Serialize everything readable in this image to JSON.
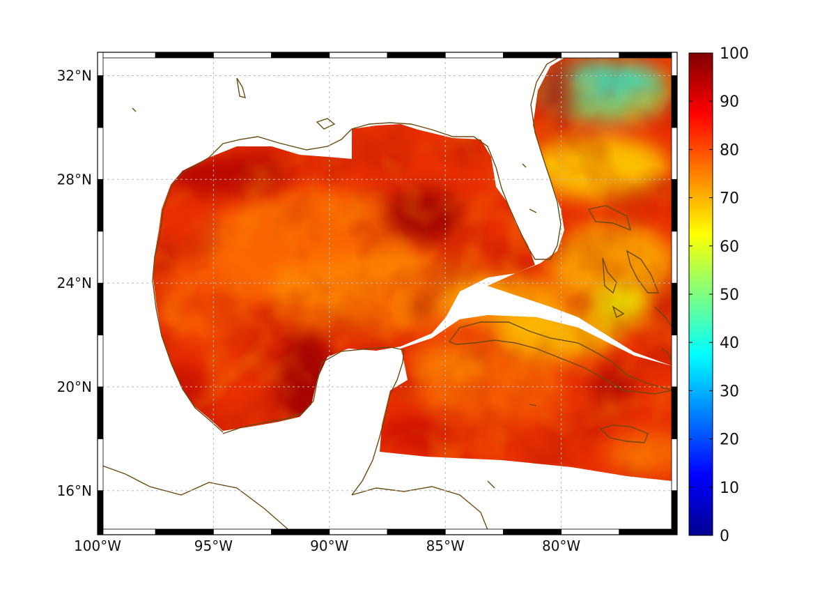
{
  "map": {
    "projection": "geographic",
    "extent": {
      "lon_min": -100,
      "lon_max": -75,
      "lat_min": 14.3,
      "lat_max": 32.9
    },
    "longitude_ticks": [
      {
        "value": -100,
        "label": "100°W"
      },
      {
        "value": -95,
        "label": "95°W"
      },
      {
        "value": -90,
        "label": "90°W"
      },
      {
        "value": -85,
        "label": "85°W"
      },
      {
        "value": -80,
        "label": "80°W"
      }
    ],
    "latitude_ticks": [
      {
        "value": 32,
        "label": "32°N"
      },
      {
        "value": 28,
        "label": "28°N"
      },
      {
        "value": 24,
        "label": "24°N"
      },
      {
        "value": 20,
        "label": "20°N"
      },
      {
        "value": 16,
        "label": "16°N"
      }
    ],
    "grid": true,
    "frame": "black-and-white checkered border",
    "coastline_color": "#6b4a12",
    "land_color": "#ffffff"
  },
  "colorbar": {
    "colormap": "jet",
    "min": 0,
    "max": 100,
    "position": "right",
    "tick_labels": [
      "0",
      "10",
      "20",
      "30",
      "40",
      "50",
      "60",
      "70",
      "80",
      "90",
      "100"
    ]
  }
}
